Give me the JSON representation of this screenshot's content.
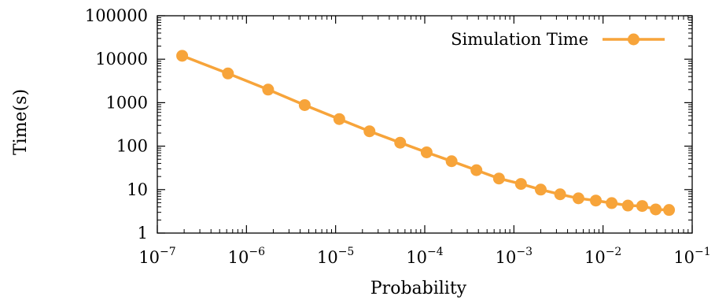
{
  "chart_data": {
    "type": "line",
    "xlabel": "Probability",
    "ylabel": "Time(s)",
    "xscale": "log",
    "yscale": "log",
    "xlim": [
      1e-07,
      0.1
    ],
    "ylim": [
      1,
      100000
    ],
    "x_ticks": [
      {
        "value": 1e-07,
        "base": "10",
        "exp": "−7"
      },
      {
        "value": 1e-06,
        "base": "10",
        "exp": "−6"
      },
      {
        "value": 1e-05,
        "base": "10",
        "exp": "−5"
      },
      {
        "value": 0.0001,
        "base": "10",
        "exp": "−4"
      },
      {
        "value": 0.001,
        "base": "10",
        "exp": "−3"
      },
      {
        "value": 0.01,
        "base": "10",
        "exp": "−2"
      },
      {
        "value": 0.1,
        "base": "10",
        "exp": "−1"
      }
    ],
    "y_ticks": [
      {
        "value": 1,
        "label": "1"
      },
      {
        "value": 10,
        "label": "10"
      },
      {
        "value": 100,
        "label": "100"
      },
      {
        "value": 1000,
        "label": "1000"
      },
      {
        "value": 10000,
        "label": "10000"
      },
      {
        "value": 100000,
        "label": "100000"
      }
    ],
    "legend_position": "top-right",
    "grid": false,
    "series": [
      {
        "name": "Simulation Time",
        "color": "#f7a43a",
        "marker": "circle",
        "points": [
          {
            "x": 1.9e-07,
            "y": 12000
          },
          {
            "x": 6.2e-07,
            "y": 4700
          },
          {
            "x": 1.75e-06,
            "y": 2000
          },
          {
            "x": 4.5e-06,
            "y": 880
          },
          {
            "x": 1.1e-05,
            "y": 420
          },
          {
            "x": 2.4e-05,
            "y": 220
          },
          {
            "x": 5.3e-05,
            "y": 120
          },
          {
            "x": 0.000105,
            "y": 72
          },
          {
            "x": 0.0002,
            "y": 45
          },
          {
            "x": 0.00038,
            "y": 28
          },
          {
            "x": 0.00068,
            "y": 18
          },
          {
            "x": 0.0012,
            "y": 13.5
          },
          {
            "x": 0.002,
            "y": 10
          },
          {
            "x": 0.0033,
            "y": 7.8
          },
          {
            "x": 0.0053,
            "y": 6.3
          },
          {
            "x": 0.0083,
            "y": 5.6
          },
          {
            "x": 0.0125,
            "y": 4.9
          },
          {
            "x": 0.019,
            "y": 4.3
          },
          {
            "x": 0.0275,
            "y": 4.2
          },
          {
            "x": 0.039,
            "y": 3.5
          },
          {
            "x": 0.055,
            "y": 3.4
          }
        ]
      }
    ]
  }
}
